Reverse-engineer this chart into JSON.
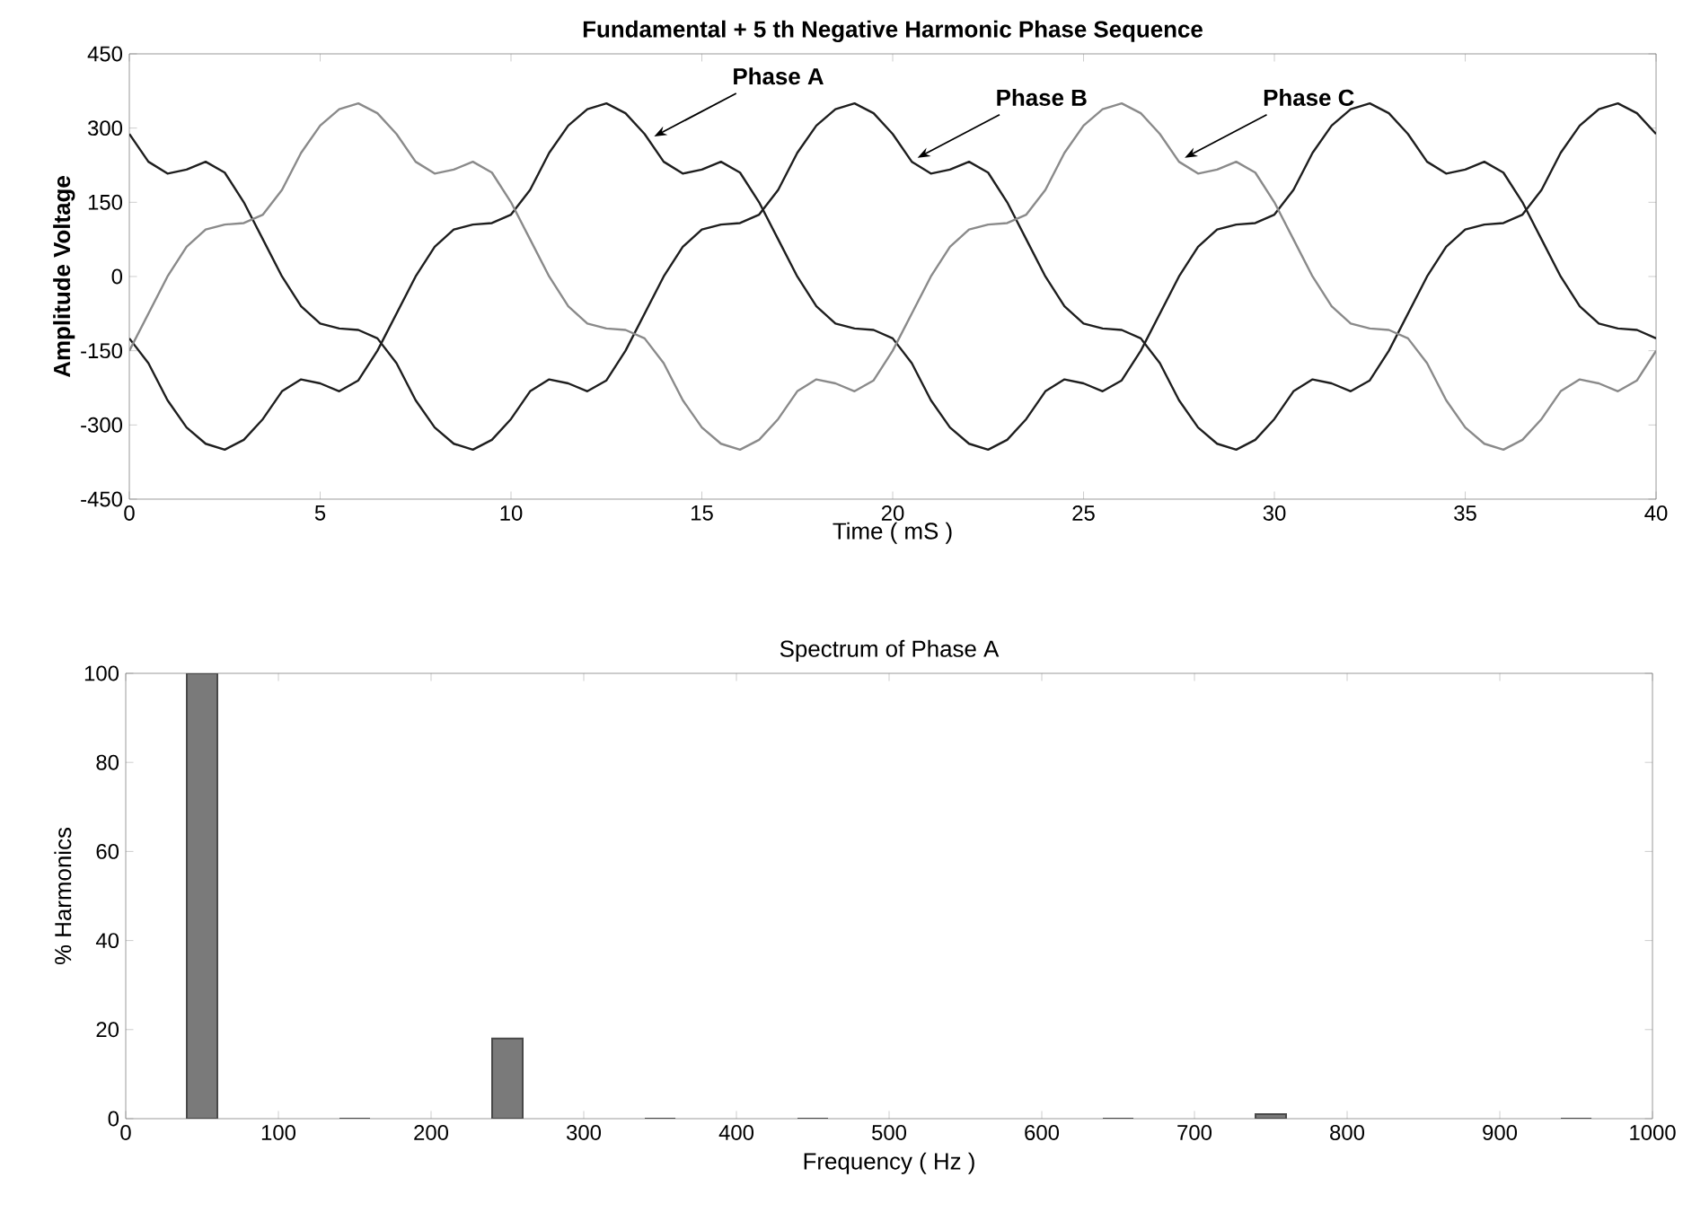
{
  "chart_data": [
    {
      "type": "line",
      "title": "Fundamental + 5 th Negative Harmonic Phase Sequence",
      "xlabel": "Time ( mS )",
      "ylabel": "Amplitude Voltage",
      "x": [
        0,
        0.5,
        1,
        1.5,
        2,
        2.5,
        3,
        3.5,
        4,
        4.5,
        5,
        5.5,
        6,
        6.5,
        7,
        7.5,
        8,
        8.5,
        9,
        9.5,
        10,
        10.5,
        11,
        11.5,
        12,
        12.5,
        13,
        13.5,
        14,
        14.5,
        15,
        15.5,
        16,
        16.5,
        17,
        17.5,
        18,
        18.5,
        19,
        19.5,
        20,
        20.5,
        21,
        21.5,
        22,
        22.5,
        23,
        23.5,
        24,
        24.5,
        25,
        25.5,
        26,
        26.5,
        27,
        27.5,
        28,
        28.5,
        29,
        29.5,
        30,
        30.5,
        31,
        31.5,
        32,
        32.5,
        33,
        33.5,
        34,
        34.5,
        35,
        35.5,
        36,
        36.5,
        37,
        37.5,
        38,
        38.5,
        39,
        39.5,
        40
      ],
      "series": [
        {
          "color": "#1e1e1e",
          "values": [
            -125,
            -175,
            -250,
            -305,
            -338,
            -350,
            -330,
            -288,
            -232,
            -208,
            -216,
            -232,
            -210,
            -150,
            -75,
            0,
            60,
            95,
            105,
            108,
            125,
            175,
            250,
            305,
            338,
            350,
            330,
            288,
            232,
            208,
            216,
            232,
            210,
            150,
            75,
            0,
            -60,
            -95,
            -105,
            -108,
            -125,
            -175,
            -250,
            -305,
            -338,
            -350,
            -330,
            -288,
            -232,
            -208,
            -216,
            -232,
            -210,
            -150,
            -75,
            0,
            60,
            95,
            105,
            108,
            125,
            175,
            250,
            305,
            338,
            350,
            330,
            288,
            232,
            208,
            216,
            232,
            210,
            150,
            75,
            0,
            -60,
            -95,
            -105,
            -108,
            -125
          ]
        },
        {
          "color": "#1e1e1e",
          "values": [
            288,
            232,
            208,
            216,
            232,
            210,
            150,
            75,
            0,
            -60,
            -95,
            -105,
            -108,
            -125,
            -175,
            -250,
            -305,
            -338,
            -350,
            -330,
            -288,
            -232,
            -208,
            -216,
            -232,
            -210,
            -150,
            -75,
            0,
            60,
            95,
            105,
            108,
            125,
            175,
            250,
            305,
            338,
            350,
            330,
            288,
            232,
            208,
            216,
            232,
            210,
            150,
            75,
            0,
            -60,
            -95,
            -105,
            -108,
            -125,
            -175,
            -250,
            -305,
            -338,
            -350,
            -330,
            -288,
            -232,
            -208,
            -216,
            -232,
            -210,
            -150,
            -75,
            0,
            60,
            95,
            105,
            108,
            125,
            175,
            250,
            305,
            338,
            350,
            330,
            288
          ]
        },
        {
          "color": "#8a8a8a",
          "values": [
            -150,
            -75,
            0,
            60,
            95,
            105,
            108,
            125,
            175,
            250,
            305,
            338,
            350,
            330,
            288,
            232,
            208,
            216,
            232,
            210,
            150,
            75,
            0,
            -60,
            -95,
            -105,
            -108,
            -125,
            -175,
            -250,
            -305,
            -338,
            -350,
            -330,
            -288,
            -232,
            -208,
            -216,
            -232,
            -210,
            -150,
            -75,
            0,
            60,
            95,
            105,
            108,
            125,
            175,
            250,
            305,
            338,
            350,
            330,
            288,
            232,
            208,
            216,
            232,
            210,
            150,
            75,
            0,
            -60,
            -95,
            -105,
            -108,
            -125,
            -175,
            -250,
            -305,
            -338,
            -350,
            -330,
            -288,
            -232,
            -208,
            -216,
            -232,
            -210,
            -150
          ]
        }
      ],
      "xlim": [
        0,
        40
      ],
      "ylim": [
        -450,
        450
      ],
      "xticks": [
        0,
        5,
        10,
        15,
        20,
        25,
        30,
        35,
        40
      ],
      "yticks": [
        -450,
        -300,
        -150,
        0,
        150,
        300,
        450
      ],
      "annotations": [
        {
          "text": "Phase A",
          "x": 13.6,
          "y": 275
        },
        {
          "text": "Phase B",
          "x": 20.5,
          "y": 232
        },
        {
          "text": "Phase C",
          "x": 27.5,
          "y": 232
        }
      ]
    },
    {
      "type": "bar",
      "title": "Spectrum of Phase A",
      "xlabel": "Frequency ( Hz )",
      "ylabel": "% Harmonics",
      "x": [
        50,
        150,
        250,
        350,
        450,
        650,
        750,
        950
      ],
      "values": [
        100,
        0,
        18,
        0,
        0,
        0,
        1,
        0
      ],
      "color": "#7a7a7a",
      "xlim": [
        0,
        1000
      ],
      "ylim": [
        0,
        100
      ],
      "xticks": [
        0,
        100,
        200,
        300,
        400,
        500,
        600,
        700,
        800,
        900,
        1000
      ],
      "yticks": [
        0,
        20,
        40,
        60,
        80,
        100
      ]
    }
  ]
}
